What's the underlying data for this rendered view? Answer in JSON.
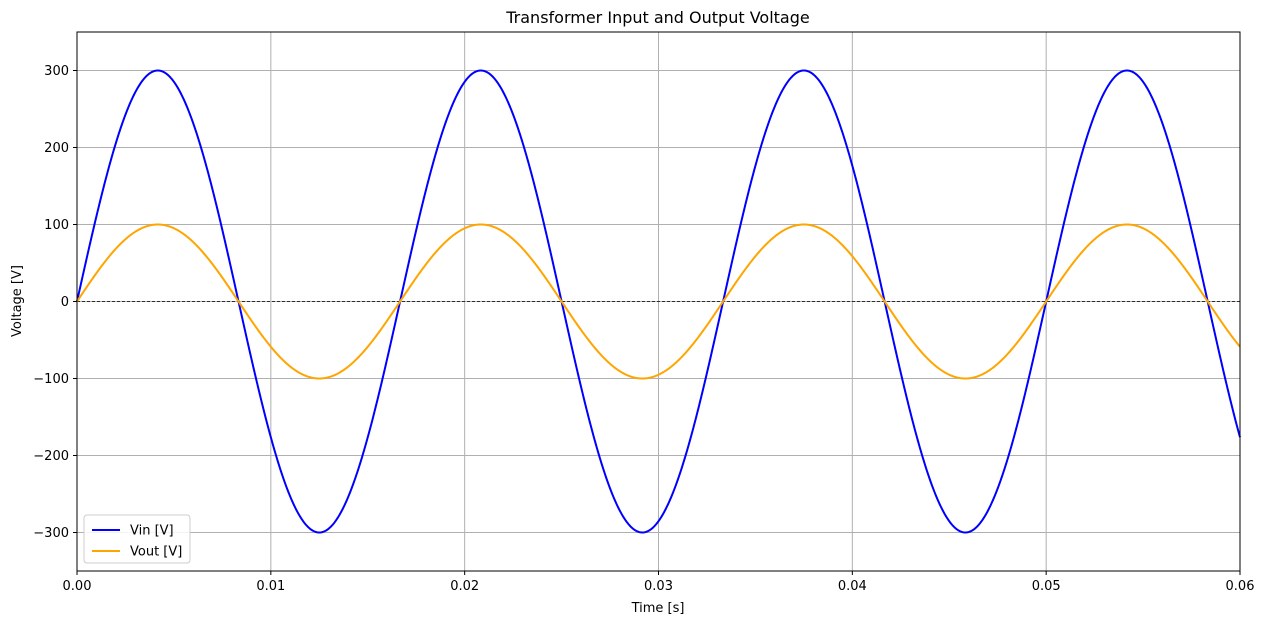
{
  "chart_data": {
    "type": "line",
    "title": "Transformer Input and Output Voltage",
    "xlabel": "Time [s]",
    "ylabel": "Voltage [V]",
    "xlim": [
      0,
      0.06
    ],
    "ylim": [
      -350,
      350
    ],
    "x_ticks": [
      0,
      0.01,
      0.02,
      0.03,
      0.04,
      0.05,
      0.06
    ],
    "x_tick_labels": [
      "0.00",
      "0.01",
      "0.02",
      "0.03",
      "0.04",
      "0.05",
      "0.06"
    ],
    "y_ticks": [
      -300,
      -200,
      -100,
      0,
      100,
      200,
      300
    ],
    "y_tick_labels": [
      "−300",
      "−200",
      "−100",
      "0",
      "100",
      "200",
      "300"
    ],
    "grid": true,
    "zero_line": true,
    "legend_position": "lower-left",
    "frequency_hz": 60,
    "series": [
      {
        "name": "Vin [V]",
        "color": "#0000ff",
        "amplitude": 300,
        "shape": "sine"
      },
      {
        "name": "Vout [V]",
        "color": "#ffa500",
        "amplitude": 100,
        "shape": "sine"
      }
    ]
  }
}
